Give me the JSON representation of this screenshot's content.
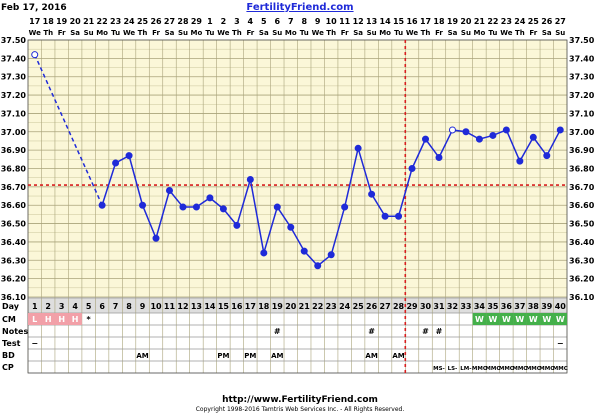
{
  "header": {
    "date": "Feb 17, 2016",
    "site": "FertilityFriend.com"
  },
  "footer": {
    "url": "http://www.FertilityFriend.com",
    "copyright": "Copyright 1998-2016 Tamtris Web Services Inc. - All Rights Reserved."
  },
  "colors": {
    "plot_bg": "#fbf7d8",
    "grid": "#c9c49a",
    "line": "#1f2ad8",
    "coverline": "#d81f1f",
    "period": "#f2a0a8",
    "cm": "#44b04a",
    "row_bg": "#dedede"
  },
  "rows": {
    "day": "Day",
    "cm": "CM",
    "notes": "Notes",
    "test": "Test",
    "bd": "BD",
    "cp": "CP"
  },
  "chart_data": {
    "type": "line",
    "ylim": [
      36.1,
      37.5
    ],
    "y_ticks": [
      "37.50",
      "37.40",
      "37.30",
      "37.20",
      "37.10",
      "37.00",
      "36.90",
      "36.80",
      "36.70",
      "36.60",
      "36.50",
      "36.40",
      "36.30",
      "36.20",
      "36.10"
    ],
    "dates": [
      "17",
      "18",
      "19",
      "20",
      "21",
      "22",
      "23",
      "24",
      "25",
      "26",
      "27",
      "28",
      "29",
      "1",
      "2",
      "3",
      "4",
      "5",
      "6",
      "7",
      "8",
      "9",
      "10",
      "11",
      "12",
      "13",
      "14",
      "15",
      "16",
      "17",
      "18",
      "19",
      "20",
      "21",
      "22",
      "23",
      "24",
      "25",
      "26",
      "27"
    ],
    "weekdays": [
      "We",
      "Th",
      "Fr",
      "Sa",
      "Su",
      "Mo",
      "Tu",
      "We",
      "Th",
      "Fr",
      "Sa",
      "Su",
      "Mo",
      "Tu",
      "We",
      "Th",
      "Fr",
      "Sa",
      "Su",
      "Mo",
      "Tu",
      "We",
      "Th",
      "Fr",
      "Sa",
      "Su",
      "Mo",
      "Tu",
      "We",
      "Th",
      "Fr",
      "Sa",
      "Su",
      "Mo",
      "Tu",
      "We",
      "Th",
      "Fr",
      "Sa",
      "Su"
    ],
    "days": [
      1,
      2,
      3,
      4,
      5,
      6,
      7,
      8,
      9,
      10,
      11,
      12,
      13,
      14,
      15,
      16,
      17,
      18,
      19,
      20,
      21,
      22,
      23,
      24,
      25,
      26,
      27,
      28,
      29,
      30,
      31,
      32,
      33,
      34,
      35,
      36,
      37,
      38,
      39,
      40
    ],
    "temps": [
      37.42,
      null,
      null,
      null,
      null,
      36.6,
      36.83,
      36.87,
      36.6,
      36.42,
      36.68,
      36.59,
      36.59,
      36.64,
      36.58,
      36.49,
      36.74,
      36.34,
      36.59,
      36.48,
      36.35,
      36.27,
      36.33,
      36.59,
      36.91,
      36.66,
      36.54,
      36.54,
      36.8,
      36.96,
      36.86,
      37.01,
      37.0,
      36.96,
      36.98,
      37.01,
      36.84,
      36.97,
      36.87,
      37.01
    ],
    "open_points": [
      1,
      32
    ],
    "dashed_segment": [
      1,
      6
    ],
    "coverline": 36.71,
    "ovulation_day": 28,
    "period": [
      "L",
      "H",
      "H",
      "H",
      "*"
    ],
    "cm": [
      {
        "day": 34,
        "v": "W"
      },
      {
        "day": 35,
        "v": "W"
      },
      {
        "day": 36,
        "v": "W"
      },
      {
        "day": 37,
        "v": "W"
      },
      {
        "day": 38,
        "v": "W"
      },
      {
        "day": 39,
        "v": "W"
      },
      {
        "day": 40,
        "v": "W"
      }
    ],
    "notes": [
      {
        "day": 19,
        "v": "#"
      },
      {
        "day": 26,
        "v": "#"
      },
      {
        "day": 30,
        "v": "#"
      },
      {
        "day": 31,
        "v": "#"
      }
    ],
    "test": [
      {
        "day": 1,
        "v": "−"
      },
      {
        "day": 40,
        "v": "−"
      }
    ],
    "bd": [
      {
        "day": 9,
        "v": "AM"
      },
      {
        "day": 15,
        "v": "PM"
      },
      {
        "day": 17,
        "v": "PM"
      },
      {
        "day": 19,
        "v": "AM"
      },
      {
        "day": 26,
        "v": "AM"
      },
      {
        "day": 28,
        "v": "AM"
      }
    ],
    "cp": [
      {
        "day": 31,
        "v": "MS-"
      },
      {
        "day": 32,
        "v": "LS-"
      },
      {
        "day": 33,
        "v": "LM-"
      },
      {
        "day": 34,
        "v": "MMC"
      },
      {
        "day": 35,
        "v": "MMC"
      },
      {
        "day": 36,
        "v": "MMC"
      },
      {
        "day": 37,
        "v": "MMC"
      },
      {
        "day": 38,
        "v": "MMC"
      },
      {
        "day": 39,
        "v": "MMC"
      },
      {
        "day": 40,
        "v": "MMC"
      }
    ]
  }
}
